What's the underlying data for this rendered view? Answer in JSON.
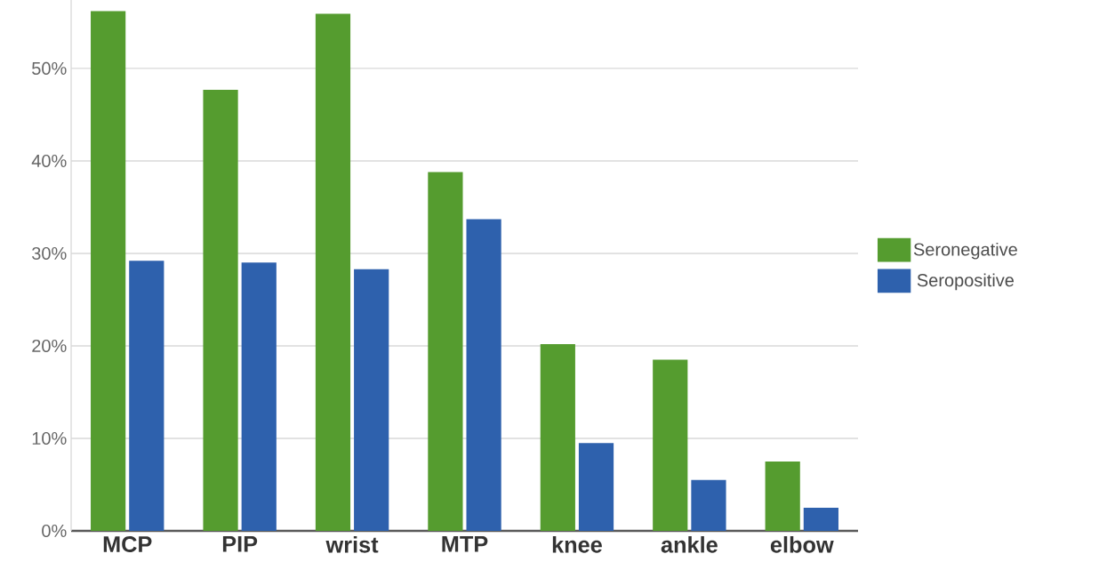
{
  "chart_data": {
    "type": "bar",
    "categories": [
      "MCP",
      "PIP",
      "wrist",
      "MTP",
      "knee",
      "ankle",
      "elbow"
    ],
    "series": [
      {
        "name": "Seronegative",
        "color": "#559c2f",
        "values": [
          56.2,
          47.7,
          55.9,
          38.8,
          20.2,
          18.5,
          7.5
        ]
      },
      {
        "name": "Seropositive",
        "color": "#2e61ad",
        "values": [
          29.2,
          29.0,
          28.3,
          33.7,
          9.5,
          5.5,
          2.5
        ]
      }
    ],
    "ylim": [
      0,
      57.4
    ],
    "yticks": [
      {
        "value": 0,
        "label": "0%"
      },
      {
        "value": 10,
        "label": "10%"
      },
      {
        "value": 20,
        "label": "20%"
      },
      {
        "value": 30,
        "label": "30%"
      },
      {
        "value": 40,
        "label": "40%"
      },
      {
        "value": 50,
        "label": "50%"
      }
    ],
    "grid": "y",
    "legend": "right"
  }
}
